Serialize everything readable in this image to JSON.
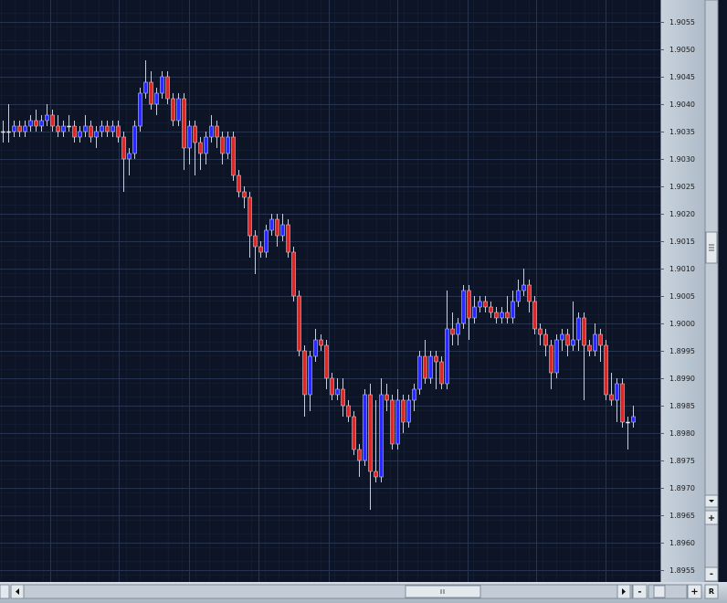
{
  "chart_data": {
    "type": "candlestick",
    "up_color": "#2a2aff",
    "down_color": "#d42a2a",
    "flat_color": "#e8e8f0",
    "wick_color": "#c8ccd8",
    "grid": true,
    "ylim": [
      1.8953,
      1.9059
    ],
    "yticks": [
      1.9055,
      {
        "value": 1.905,
        "label": "1.9050"
      },
      1.9045,
      {
        "value": 1.904,
        "label": "1.9040"
      },
      1.9035,
      {
        "value": 1.903,
        "label": "1.9030"
      },
      1.9025,
      {
        "value": 1.902,
        "label": "1.9020"
      },
      1.9015,
      {
        "value": 1.901,
        "label": "1.9010"
      },
      1.9005,
      {
        "value": 1.9,
        "label": "1.9000"
      },
      1.8995,
      {
        "value": 1.899,
        "label": "1.8990"
      },
      1.8985,
      {
        "value": 1.898,
        "label": "1.8980"
      },
      1.8975,
      {
        "value": 1.897,
        "label": "1.8970"
      },
      1.8965,
      {
        "value": 1.896,
        "label": "1.8960"
      },
      1.8955
    ],
    "open": [
      1.9035,
      1.9035,
      1.9035,
      1.9036,
      1.9035,
      1.9036,
      1.9037,
      1.9036,
      1.9037,
      1.9038,
      1.9036,
      1.9035,
      1.9036,
      1.9036,
      1.9034,
      1.9035,
      1.9036,
      1.9034,
      1.9035,
      1.9036,
      1.9035,
      1.9036,
      1.9034,
      1.903,
      1.9031,
      1.9036,
      1.9042,
      1.9044,
      1.904,
      1.9042,
      1.9045,
      1.9041,
      1.9037,
      1.9041,
      1.9032,
      1.9036,
      1.9033,
      1.9031,
      1.9034,
      1.9036,
      1.9034,
      1.9031,
      1.9034,
      1.9027,
      1.9024,
      1.9023,
      1.9016,
      1.9014,
      1.9013,
      1.9017,
      1.9019,
      1.9016,
      1.9018,
      1.9013,
      1.9005,
      1.8995,
      1.8987,
      1.8994,
      1.8997,
      1.8996,
      1.899,
      1.8987,
      1.8988,
      1.8985,
      1.8983,
      1.8977,
      1.8975,
      1.8987,
      1.8973,
      1.8972,
      1.8987,
      1.8986,
      1.8978,
      1.8986,
      1.8982,
      1.8986,
      1.8988,
      1.8994,
      1.899,
      1.8994,
      1.8993,
      1.8989,
      1.8999,
      1.8998,
      1.9,
      1.9006,
      1.9001,
      1.9003,
      1.9004,
      1.9003,
      1.9002,
      1.9001,
      1.9002,
      1.9001,
      1.9004,
      1.9006,
      1.9007,
      1.9004,
      1.8999,
      1.8998,
      1.8996,
      1.8991,
      1.8997,
      1.8998,
      1.8996,
      1.8997,
      1.9001,
      1.8996,
      1.8995,
      1.8998,
      1.8996,
      1.8987,
      1.8986,
      1.8989,
      1.8982,
      1.8982
    ],
    "high": [
      1.9037,
      1.904,
      1.9037,
      1.9037,
      1.9037,
      1.9038,
      1.9039,
      1.9038,
      1.904,
      1.9039,
      1.9038,
      1.9037,
      1.9038,
      1.9037,
      1.9036,
      1.9038,
      1.9037,
      1.9036,
      1.9037,
      1.9037,
      1.9037,
      1.9037,
      1.9035,
      1.9032,
      1.9037,
      1.9043,
      1.9048,
      1.9046,
      1.9043,
      1.9046,
      1.9046,
      1.9042,
      1.9042,
      1.9042,
      1.9037,
      1.9037,
      1.9034,
      1.9035,
      1.9038,
      1.9037,
      1.9035,
      1.9035,
      1.9035,
      1.9028,
      1.9025,
      1.9024,
      1.9017,
      1.9015,
      1.9018,
      1.902,
      1.902,
      1.902,
      1.9019,
      1.9014,
      1.9006,
      1.8996,
      1.8995,
      1.8999,
      1.8998,
      1.8997,
      1.8991,
      1.899,
      1.899,
      1.8986,
      1.8984,
      1.8978,
      1.8988,
      1.8989,
      1.8986,
      1.899,
      1.8989,
      1.8987,
      1.8988,
      1.8987,
      1.8987,
      1.8989,
      1.8995,
      1.8997,
      1.8995,
      1.8995,
      1.8994,
      1.9006,
      1.9002,
      1.9001,
      1.9007,
      1.9007,
      1.9005,
      1.9005,
      1.9005,
      1.9004,
      1.9003,
      1.9003,
      1.9005,
      1.9006,
      1.9008,
      1.901,
      1.9008,
      1.9005,
      1.9,
      1.8999,
      1.8997,
      1.8998,
      1.8999,
      1.8999,
      1.9004,
      1.9002,
      1.9002,
      1.8997,
      1.9,
      1.8999,
      1.8997,
      1.8991,
      1.899,
      1.899,
      1.8983,
      1.8985
    ],
    "low": [
      1.9033,
      1.9033,
      1.9034,
      1.9034,
      1.9034,
      1.9035,
      1.9035,
      1.9035,
      1.9036,
      1.9035,
      1.9034,
      1.9034,
      1.9035,
      1.9033,
      1.9033,
      1.9034,
      1.9033,
      1.9032,
      1.9034,
      1.9034,
      1.9034,
      1.9033,
      1.9024,
      1.9027,
      1.903,
      1.9035,
      1.9041,
      1.9039,
      1.9038,
      1.9041,
      1.904,
      1.9036,
      1.9036,
      1.9028,
      1.9029,
      1.9027,
      1.9028,
      1.9029,
      1.9033,
      1.9032,
      1.9029,
      1.903,
      1.9026,
      1.9023,
      1.9021,
      1.9012,
      1.9009,
      1.9012,
      1.9012,
      1.9016,
      1.9014,
      1.9015,
      1.9012,
      1.9004,
      1.8994,
      1.8983,
      1.8984,
      1.8993,
      1.8995,
      1.8988,
      1.8986,
      1.8986,
      1.8983,
      1.8982,
      1.8976,
      1.8972,
      1.8974,
      1.8966,
      1.8971,
      1.8971,
      1.8984,
      1.8977,
      1.8977,
      1.898,
      1.8981,
      1.8984,
      1.8987,
      1.8989,
      1.8989,
      1.8988,
      1.8988,
      1.8988,
      1.8996,
      1.8996,
      1.8999,
      1.8997,
      1.9,
      1.9002,
      1.9002,
      1.9001,
      1.9,
      1.9,
      1.9,
      1.9,
      1.9003,
      1.9005,
      1.9002,
      1.8998,
      1.8996,
      1.8994,
      1.8988,
      1.899,
      1.8995,
      1.8994,
      1.8995,
      1.8995,
      1.8986,
      1.8994,
      1.8994,
      1.8993,
      1.8986,
      1.8985,
      1.8982,
      1.8981,
      1.8977,
      1.8981
    ],
    "close": [
      1.9035,
      1.9035,
      1.9036,
      1.9035,
      1.9036,
      1.9037,
      1.9036,
      1.9037,
      1.9038,
      1.9036,
      1.9035,
      1.9036,
      1.9036,
      1.9034,
      1.9035,
      1.9036,
      1.9034,
      1.9035,
      1.9036,
      1.9035,
      1.9036,
      1.9034,
      1.903,
      1.9031,
      1.9036,
      1.9042,
      1.9044,
      1.904,
      1.9042,
      1.9045,
      1.9041,
      1.9037,
      1.9041,
      1.9032,
      1.9036,
      1.9033,
      1.9031,
      1.9034,
      1.9036,
      1.9034,
      1.9031,
      1.9034,
      1.9027,
      1.9024,
      1.9023,
      1.9016,
      1.9014,
      1.9013,
      1.9017,
      1.9019,
      1.9016,
      1.9018,
      1.9013,
      1.9005,
      1.8995,
      1.8987,
      1.8994,
      1.8997,
      1.8996,
      1.899,
      1.8987,
      1.8988,
      1.8985,
      1.8983,
      1.8977,
      1.8975,
      1.8987,
      1.8973,
      1.8972,
      1.8987,
      1.8986,
      1.8978,
      1.8986,
      1.8982,
      1.8986,
      1.8988,
      1.8994,
      1.899,
      1.8994,
      1.8993,
      1.8989,
      1.8999,
      1.8998,
      1.9,
      1.9006,
      1.9001,
      1.9003,
      1.9004,
      1.9003,
      1.9002,
      1.9001,
      1.9002,
      1.9001,
      1.9004,
      1.9006,
      1.9007,
      1.9004,
      1.8999,
      1.8998,
      1.8996,
      1.8991,
      1.8997,
      1.8998,
      1.8996,
      1.8997,
      1.9001,
      1.8996,
      1.8995,
      1.8998,
      1.8996,
      1.8987,
      1.8986,
      1.8989,
      1.8982,
      1.8982,
      1.8983
    ],
    "controls": {
      "right_plus": "+",
      "right_minus": "-",
      "bottom_minus": "-",
      "bottom_plus": "+",
      "bottom_reset": "R"
    }
  }
}
